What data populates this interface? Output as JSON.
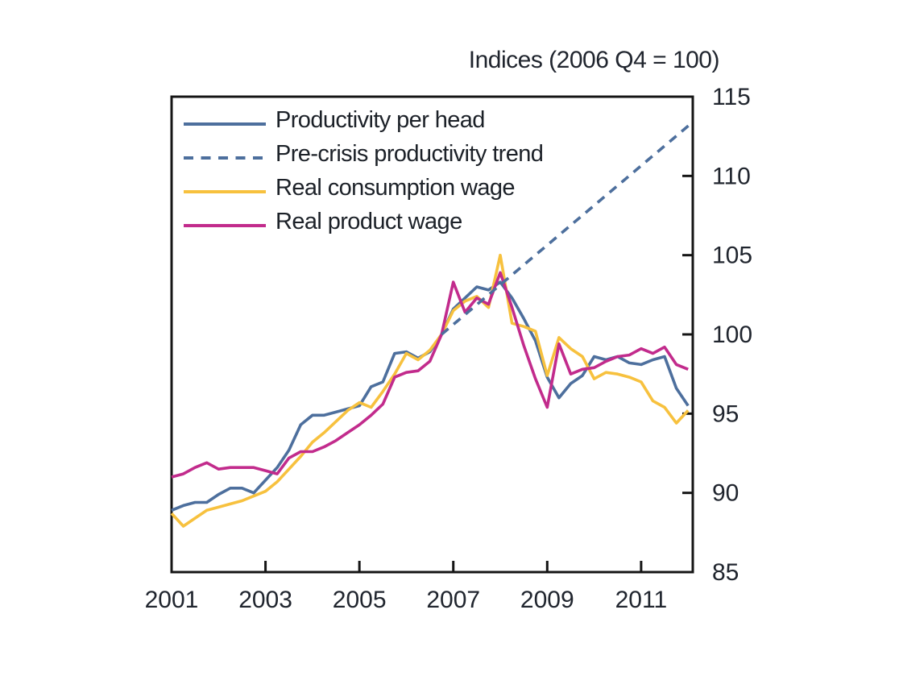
{
  "chart_data": {
    "type": "line",
    "title": "Indices (2006 Q4 = 100)",
    "xlabel": "",
    "ylabel": "",
    "x_start": 2001.0,
    "x_step": 0.25,
    "x_frequency": "quarterly",
    "xlim": [
      2001.0,
      2012.1
    ],
    "ylim": [
      85,
      115
    ],
    "yticks": [
      85,
      90,
      95,
      100,
      105,
      110,
      115
    ],
    "ytick_side": "right",
    "xticks": [
      2001,
      2003,
      2005,
      2007,
      2009,
      2011
    ],
    "xtick_labels": [
      "2001",
      "2003",
      "2005",
      "2007",
      "2009",
      "2011"
    ],
    "grid": false,
    "legend_position": "top-left-inside",
    "colors": {
      "axis": "#151515",
      "text": "#20252e",
      "background": "#ffffff"
    },
    "series": [
      {
        "name": "Productivity per head",
        "color": "#4d6f9d",
        "style": "solid",
        "values": [
          88.9,
          89.2,
          89.4,
          89.4,
          89.9,
          90.3,
          90.3,
          90.0,
          90.8,
          91.6,
          92.7,
          94.3,
          94.9,
          94.9,
          95.1,
          95.3,
          95.5,
          96.7,
          97.0,
          98.8,
          98.9,
          98.5,
          98.9,
          100.0,
          101.6,
          102.3,
          103.0,
          102.8,
          103.3,
          102.3,
          101.0,
          99.6,
          97.3,
          96.0,
          96.9,
          97.4,
          98.6,
          98.4,
          98.6,
          98.2,
          98.1,
          98.4,
          98.6,
          96.6,
          95.5
        ]
      },
      {
        "name": "Pre-crisis productivity trend",
        "color": "#4d6f9d",
        "style": "dashed",
        "x": [
          2006.75,
          2012.1
        ],
        "values": [
          100.0,
          113.4
        ]
      },
      {
        "name": "Real consumption wage",
        "color": "#f7c13e",
        "style": "solid",
        "values": [
          88.7,
          87.9,
          88.4,
          88.9,
          89.1,
          89.3,
          89.5,
          89.8,
          90.1,
          90.7,
          91.5,
          92.3,
          93.2,
          93.8,
          94.5,
          95.2,
          95.7,
          95.4,
          96.4,
          97.5,
          98.8,
          98.4,
          99.0,
          100.0,
          101.5,
          102.1,
          102.4,
          101.7,
          105.0,
          100.7,
          100.5,
          100.2,
          97.4,
          99.8,
          99.1,
          98.6,
          97.2,
          97.6,
          97.5,
          97.3,
          97.0,
          95.8,
          95.4,
          94.4,
          95.2
        ]
      },
      {
        "name": "Real product wage",
        "color": "#c22b8c",
        "style": "solid",
        "values": [
          91.0,
          91.2,
          91.6,
          91.9,
          91.5,
          91.6,
          91.6,
          91.6,
          91.4,
          91.2,
          92.2,
          92.6,
          92.6,
          92.9,
          93.3,
          93.8,
          94.3,
          94.9,
          95.6,
          97.3,
          97.6,
          97.7,
          98.3,
          100.0,
          103.3,
          101.4,
          102.3,
          101.9,
          103.9,
          101.7,
          99.3,
          97.2,
          95.4,
          99.4,
          97.5,
          97.8,
          97.9,
          98.3,
          98.6,
          98.7,
          99.1,
          98.8,
          99.2,
          98.1,
          97.8
        ]
      }
    ]
  }
}
